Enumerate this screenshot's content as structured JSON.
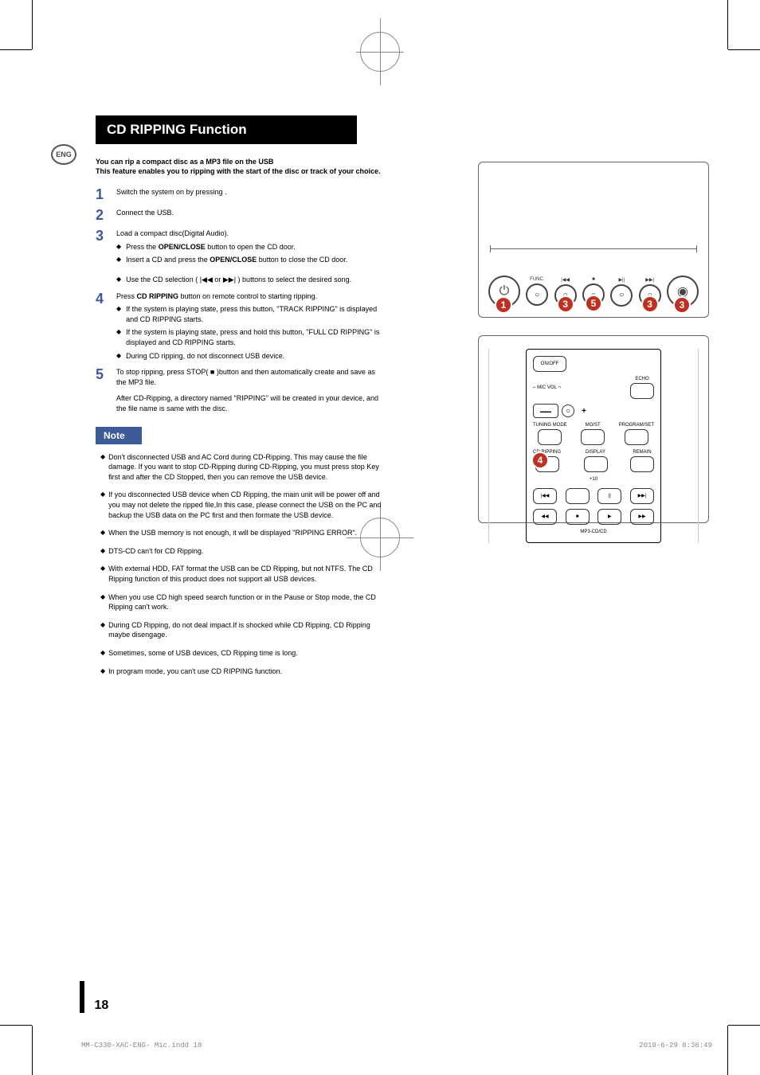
{
  "lang_badge": "ENG",
  "title": "CD RIPPING Function",
  "intro": "You can rip a compact disc as a MP3 file on the USB\nThis feature enables you to ripping with the start of the disc or track of your choice.",
  "steps": [
    {
      "n": "1",
      "text": "Switch the system on by pressing           ."
    },
    {
      "n": "2",
      "text": "Connect the USB."
    },
    {
      "n": "3",
      "text": "Load a compact disc(Digital Audio).",
      "subs": [
        "Press the OPEN/CLOSE button to open the CD door.",
        "Insert a CD and press the OPEN/CLOSE button to close the CD door."
      ],
      "subs2": [
        "Use the CD selection ( |◀◀ or ▶▶| ) buttons to select the desired song."
      ]
    },
    {
      "n": "4",
      "text": "Press CD RIPPING button on remote control to starting ripping.",
      "subs": [
        "If the system is playing state, press this button, \"TRACK RIPPING\" is displayed and CD RIPPING starts.",
        "If the system is playing state, press and hold this button, \"FULL CD RIPPING\" is displayed and CD RIPPING starts.",
        "During CD ripping, do not disconnect USB device."
      ]
    },
    {
      "n": "5",
      "text": "To stop ripping, press STOP( ■ )button and then automatically create and save as the MP3 file.",
      "after": "After CD-Ripping, a directory named \"RIPPING\" will be created in your device, and the file name is same with the disc."
    }
  ],
  "note_label": "Note",
  "notes": [
    "Don't disconnected USB and AC Cord  during CD-Ripping. This may cause the file damage. If you want to stop CD-Ripping during CD-Ripping, you must press stop Key first and after the CD Stopped, then you can remove the USB device.",
    "If you disconnected USB device when CD Ripping, the main unit will be power off and you may not delete the ripped file,In this case, please connect the USB on the PC and backup the USB data on the PC first and then formate the USB device.",
    "When the USB memory is not enough, it will be displayed \"RIPPING ERROR\".",
    "DTS-CD can't for CD Ripping.",
    "With external HDD, FAT format the USB can be CD Ripping, but not NTFS. The CD Ripping function of this product does not support all USB devices.",
    "When you use CD high speed search function or in the Pause or Stop mode, the CD Ripping can't work.",
    "During CD Ripping, do not deal impact.If is shocked while CD Ripping, CD Ripping maybe disengage.",
    "Sometimes, some of USB devices, CD Ripping time is long.",
    "In program mode, you can't use CD RIPPING function."
  ],
  "panel": {
    "func_label": "FUNC.",
    "btn_prev": "|◀◀",
    "btn_stop": "■",
    "btn_play": "▶||",
    "btn_next": "▶▶|",
    "markers": [
      "1",
      "3",
      "5",
      "3",
      "3"
    ]
  },
  "remote": {
    "onoff": "ON/OFF",
    "micvol": "MIC VOL",
    "echo": "ECHO",
    "tuning": "TUNING MODE",
    "most": "MO/ST",
    "program": "PROGRAM/SET",
    "cdrip": "CD RIPPING",
    "display": "DISPLAY",
    "remain": "REMAIN",
    "plus10": "+10",
    "mp3": "MP3-CD/CD",
    "marker": "4"
  },
  "page_number": "18",
  "footer_left": "MM-C330-XAC-ENG- Mic.indd   18",
  "footer_right": "2010-6-29   8:36:49"
}
